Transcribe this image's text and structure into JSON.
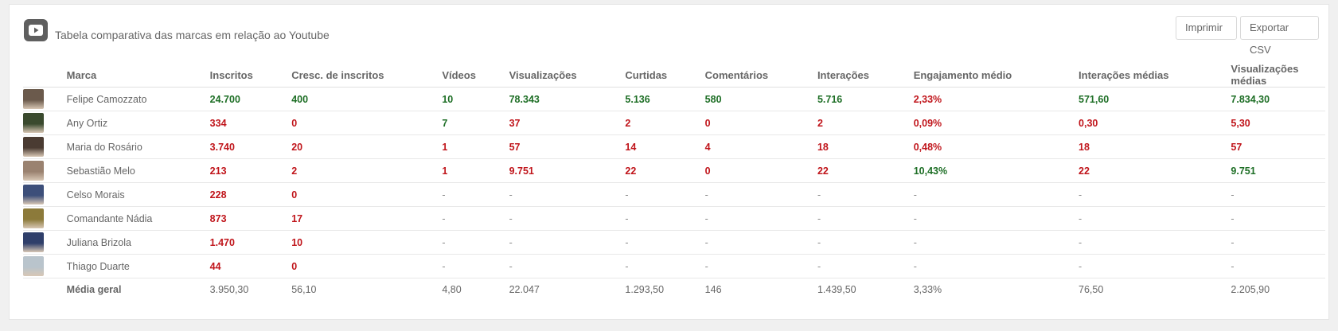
{
  "header": {
    "title": "Tabela comparativa das marcas em relação ao Youtube",
    "print_label": "Imprimir",
    "csv_label": "Exportar CSV",
    "icon": "youtube-icon"
  },
  "columns": [
    "Marca",
    "Inscritos",
    "Cresc. de inscritos",
    "Vídeos",
    "Visualizações",
    "Curtidas",
    "Comentários",
    "Interações",
    "Engajamento médio",
    "Interações médias",
    "Visualizações médias"
  ],
  "colors": {
    "positive": "#1d6e25",
    "negative": "#c0151b"
  },
  "rows": [
    {
      "name": "Felipe Camozzato",
      "avatar": "#6b5a4c",
      "cells": [
        [
          "24.700",
          "g"
        ],
        [
          "400",
          "g"
        ],
        [
          "10",
          "g"
        ],
        [
          "78.343",
          "g"
        ],
        [
          "5.136",
          "g"
        ],
        [
          "580",
          "g"
        ],
        [
          "5.716",
          "g"
        ],
        [
          "2,33%",
          "r"
        ],
        [
          "571,60",
          "g"
        ],
        [
          "7.834,30",
          "g"
        ]
      ]
    },
    {
      "name": "Any Ortiz",
      "avatar": "#3a4a2e",
      "cells": [
        [
          "334",
          "r"
        ],
        [
          "0",
          "r"
        ],
        [
          "7",
          "g"
        ],
        [
          "37",
          "r"
        ],
        [
          "2",
          "r"
        ],
        [
          "0",
          "r"
        ],
        [
          "2",
          "r"
        ],
        [
          "0,09%",
          "r"
        ],
        [
          "0,30",
          "r"
        ],
        [
          "5,30",
          "r"
        ]
      ]
    },
    {
      "name": "Maria do Rosário",
      "avatar": "#4a3b32",
      "cells": [
        [
          "3.740",
          "r"
        ],
        [
          "20",
          "r"
        ],
        [
          "1",
          "r"
        ],
        [
          "57",
          "r"
        ],
        [
          "14",
          "r"
        ],
        [
          "4",
          "r"
        ],
        [
          "18",
          "r"
        ],
        [
          "0,48%",
          "r"
        ],
        [
          "18",
          "r"
        ],
        [
          "57",
          "r"
        ]
      ]
    },
    {
      "name": "Sebastião Melo",
      "avatar": "#9a8270",
      "cells": [
        [
          "213",
          "r"
        ],
        [
          "2",
          "r"
        ],
        [
          "1",
          "r"
        ],
        [
          "9.751",
          "r"
        ],
        [
          "22",
          "r"
        ],
        [
          "0",
          "r"
        ],
        [
          "22",
          "r"
        ],
        [
          "10,43%",
          "g"
        ],
        [
          "22",
          "r"
        ],
        [
          "9.751",
          "g"
        ]
      ]
    },
    {
      "name": "Celso Morais",
      "avatar": "#3d4f7a",
      "cells": [
        [
          "228",
          "r"
        ],
        [
          "0",
          "r"
        ],
        [
          "-",
          "d"
        ],
        [
          "-",
          "d"
        ],
        [
          "-",
          "d"
        ],
        [
          "-",
          "d"
        ],
        [
          "-",
          "d"
        ],
        [
          "-",
          "d"
        ],
        [
          "-",
          "d"
        ],
        [
          "-",
          "d"
        ]
      ]
    },
    {
      "name": "Comandante Nádia",
      "avatar": "#8c7a3a",
      "cells": [
        [
          "873",
          "r"
        ],
        [
          "17",
          "r"
        ],
        [
          "-",
          "d"
        ],
        [
          "-",
          "d"
        ],
        [
          "-",
          "d"
        ],
        [
          "-",
          "d"
        ],
        [
          "-",
          "d"
        ],
        [
          "-",
          "d"
        ],
        [
          "-",
          "d"
        ],
        [
          "-",
          "d"
        ]
      ]
    },
    {
      "name": "Juliana Brizola",
      "avatar": "#2f3f6a",
      "cells": [
        [
          "1.470",
          "r"
        ],
        [
          "10",
          "r"
        ],
        [
          "-",
          "d"
        ],
        [
          "-",
          "d"
        ],
        [
          "-",
          "d"
        ],
        [
          "-",
          "d"
        ],
        [
          "-",
          "d"
        ],
        [
          "-",
          "d"
        ],
        [
          "-",
          "d"
        ],
        [
          "-",
          "d"
        ]
      ]
    },
    {
      "name": "Thiago Duarte",
      "avatar": "#b9c4cc",
      "cells": [
        [
          "44",
          "r"
        ],
        [
          "0",
          "r"
        ],
        [
          "-",
          "d"
        ],
        [
          "-",
          "d"
        ],
        [
          "-",
          "d"
        ],
        [
          "-",
          "d"
        ],
        [
          "-",
          "d"
        ],
        [
          "-",
          "d"
        ],
        [
          "-",
          "d"
        ],
        [
          "-",
          "d"
        ]
      ]
    }
  ],
  "average": {
    "label": "Média geral",
    "cells": [
      "3.950,30",
      "56,10",
      "4,80",
      "22.047",
      "1.293,50",
      "146",
      "1.439,50",
      "3,33%",
      "76,50",
      "2.205,90"
    ]
  }
}
